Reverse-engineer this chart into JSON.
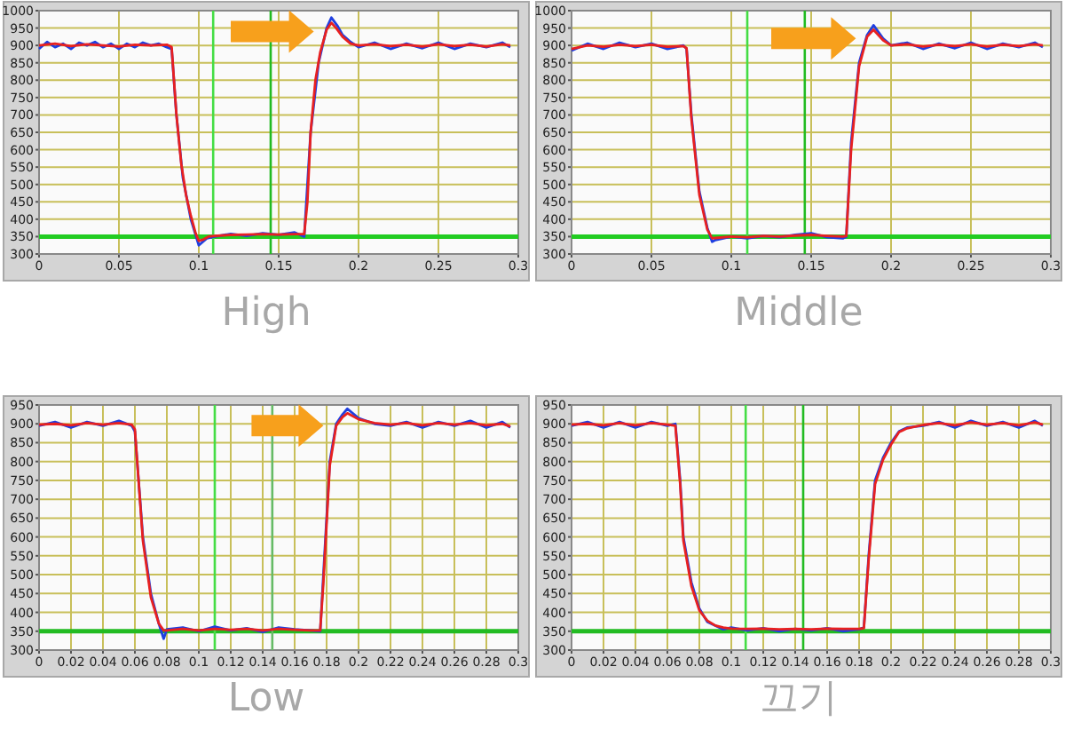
{
  "chart_data": [
    {
      "type": "line",
      "title": "High",
      "xlim": [
        0,
        0.3
      ],
      "xticks": [
        0,
        0.05,
        0.1,
        0.15,
        0.2,
        0.25,
        0.3
      ],
      "ylim": [
        300,
        1000
      ],
      "yticks": [
        300,
        350,
        400,
        450,
        500,
        550,
        600,
        650,
        700,
        750,
        800,
        850,
        900,
        950,
        1000
      ],
      "grid": true,
      "ref_lines": [
        {
          "axis": "y",
          "value": 350,
          "color": "#22cc22"
        },
        {
          "axis": "x",
          "value": 0.109,
          "color": "#44dd44"
        },
        {
          "axis": "x",
          "value": 0.145,
          "color": "#22bb22"
        }
      ],
      "series": [
        {
          "color": "#1f3fe0",
          "x": [
            0,
            0.005,
            0.01,
            0.015,
            0.02,
            0.025,
            0.03,
            0.035,
            0.04,
            0.045,
            0.05,
            0.055,
            0.06,
            0.065,
            0.07,
            0.075,
            0.08,
            0.083,
            0.086,
            0.09,
            0.095,
            0.1,
            0.105,
            0.11,
            0.12,
            0.13,
            0.14,
            0.15,
            0.16,
            0.166,
            0.17,
            0.175,
            0.18,
            0.183,
            0.187,
            0.19,
            0.195,
            0.2,
            0.21,
            0.22,
            0.23,
            0.24,
            0.25,
            0.26,
            0.27,
            0.28,
            0.29,
            0.295
          ],
          "values": [
            890,
            910,
            895,
            905,
            890,
            908,
            900,
            910,
            895,
            905,
            890,
            905,
            895,
            908,
            900,
            905,
            895,
            890,
            700,
            520,
            400,
            325,
            345,
            350,
            358,
            352,
            360,
            355,
            362,
            350,
            650,
            850,
            950,
            980,
            955,
            930,
            910,
            895,
            908,
            890,
            905,
            892,
            908,
            890,
            905,
            895,
            908,
            895
          ]
        },
        {
          "color": "#e82020",
          "x": [
            0,
            0.01,
            0.02,
            0.03,
            0.04,
            0.05,
            0.06,
            0.07,
            0.08,
            0.083,
            0.086,
            0.089,
            0.092,
            0.095,
            0.098,
            0.1,
            0.103,
            0.106,
            0.11,
            0.12,
            0.13,
            0.14,
            0.15,
            0.16,
            0.166,
            0.168,
            0.17,
            0.173,
            0.176,
            0.18,
            0.183,
            0.186,
            0.19,
            0.195,
            0.2,
            0.21,
            0.22,
            0.23,
            0.24,
            0.25,
            0.26,
            0.27,
            0.28,
            0.29,
            0.295
          ],
          "values": [
            900,
            905,
            898,
            903,
            900,
            897,
            902,
            900,
            902,
            895,
            700,
            560,
            470,
            410,
            360,
            338,
            342,
            350,
            352,
            355,
            356,
            357,
            356,
            357,
            357,
            450,
            650,
            800,
            880,
            945,
            965,
            950,
            925,
            905,
            900,
            903,
            898,
            902,
            897,
            903,
            898,
            902,
            897,
            903,
            900
          ]
        }
      ]
    },
    {
      "type": "line",
      "title": "Middle",
      "xlim": [
        0,
        0.3
      ],
      "xticks": [
        0,
        0.05,
        0.1,
        0.15,
        0.2,
        0.25,
        0.3
      ],
      "ylim": [
        300,
        1000
      ],
      "yticks": [
        300,
        350,
        400,
        450,
        500,
        550,
        600,
        650,
        700,
        750,
        800,
        850,
        900,
        950,
        1000
      ],
      "grid": true,
      "ref_lines": [
        {
          "axis": "y",
          "value": 350,
          "color": "#22cc22"
        },
        {
          "axis": "x",
          "value": 0.11,
          "color": "#44dd44"
        },
        {
          "axis": "x",
          "value": 0.146,
          "color": "#22bb22"
        }
      ],
      "series": [
        {
          "color": "#1f3fe0",
          "x": [
            0,
            0.01,
            0.02,
            0.03,
            0.04,
            0.05,
            0.06,
            0.07,
            0.072,
            0.075,
            0.08,
            0.085,
            0.088,
            0.09,
            0.1,
            0.11,
            0.12,
            0.13,
            0.14,
            0.15,
            0.16,
            0.17,
            0.172,
            0.175,
            0.18,
            0.185,
            0.189,
            0.195,
            0.2,
            0.21,
            0.22,
            0.23,
            0.24,
            0.25,
            0.26,
            0.27,
            0.28,
            0.29,
            0.295
          ],
          "values": [
            885,
            905,
            890,
            908,
            895,
            905,
            890,
            900,
            890,
            700,
            480,
            375,
            335,
            340,
            350,
            345,
            352,
            348,
            355,
            360,
            348,
            345,
            350,
            620,
            850,
            930,
            958,
            920,
            900,
            908,
            890,
            905,
            892,
            908,
            890,
            905,
            895,
            908,
            895
          ]
        },
        {
          "color": "#e82020",
          "x": [
            0,
            0.01,
            0.02,
            0.03,
            0.04,
            0.05,
            0.06,
            0.07,
            0.072,
            0.075,
            0.08,
            0.085,
            0.088,
            0.09,
            0.1,
            0.11,
            0.12,
            0.13,
            0.14,
            0.15,
            0.16,
            0.17,
            0.172,
            0.175,
            0.18,
            0.185,
            0.189,
            0.195,
            0.2,
            0.21,
            0.22,
            0.23,
            0.24,
            0.25,
            0.26,
            0.27,
            0.28,
            0.29,
            0.295
          ],
          "values": [
            890,
            900,
            896,
            902,
            898,
            902,
            896,
            898,
            892,
            690,
            470,
            370,
            345,
            346,
            350,
            348,
            352,
            350,
            353,
            355,
            352,
            350,
            352,
            600,
            840,
            925,
            945,
            915,
            900,
            903,
            897,
            902,
            898,
            903,
            897,
            902,
            898,
            903,
            900
          ]
        }
      ]
    },
    {
      "type": "line",
      "title": "Low",
      "xlim": [
        0,
        0.3
      ],
      "xticks": [
        0,
        0.02,
        0.04,
        0.06,
        0.08,
        0.1,
        0.12,
        0.14,
        0.16,
        0.18,
        0.2,
        0.22,
        0.24,
        0.26,
        0.28,
        0.3
      ],
      "ylim": [
        300,
        950
      ],
      "yticks": [
        300,
        350,
        400,
        450,
        500,
        550,
        600,
        650,
        700,
        750,
        800,
        850,
        900,
        950
      ],
      "grid": true,
      "ref_lines": [
        {
          "axis": "y",
          "value": 350,
          "color": "#22bb22"
        },
        {
          "axis": "x",
          "value": 0.11,
          "color": "#44dd44"
        },
        {
          "axis": "x",
          "value": 0.146,
          "color": "#66bb66"
        }
      ],
      "series": [
        {
          "color": "#1f3fe0",
          "x": [
            0,
            0.01,
            0.02,
            0.03,
            0.04,
            0.05,
            0.058,
            0.06,
            0.065,
            0.07,
            0.075,
            0.078,
            0.08,
            0.09,
            0.1,
            0.11,
            0.12,
            0.13,
            0.14,
            0.15,
            0.16,
            0.17,
            0.176,
            0.178,
            0.182,
            0.186,
            0.19,
            0.193,
            0.2,
            0.21,
            0.22,
            0.23,
            0.24,
            0.25,
            0.26,
            0.27,
            0.28,
            0.29,
            0.295
          ],
          "values": [
            895,
            905,
            890,
            905,
            895,
            908,
            895,
            880,
            600,
            450,
            370,
            330,
            355,
            360,
            350,
            362,
            352,
            358,
            348,
            360,
            355,
            352,
            350,
            500,
            800,
            900,
            925,
            940,
            915,
            900,
            895,
            905,
            890,
            905,
            895,
            908,
            890,
            905,
            890
          ]
        },
        {
          "color": "#e82020",
          "x": [
            0,
            0.01,
            0.02,
            0.03,
            0.04,
            0.05,
            0.058,
            0.06,
            0.065,
            0.07,
            0.075,
            0.078,
            0.08,
            0.09,
            0.1,
            0.11,
            0.12,
            0.13,
            0.14,
            0.15,
            0.16,
            0.17,
            0.176,
            0.178,
            0.182,
            0.186,
            0.19,
            0.193,
            0.2,
            0.21,
            0.22,
            0.23,
            0.24,
            0.25,
            0.26,
            0.27,
            0.28,
            0.29,
            0.295
          ],
          "values": [
            898,
            900,
            896,
            902,
            898,
            902,
            898,
            885,
            590,
            440,
            370,
            352,
            352,
            356,
            352,
            356,
            354,
            356,
            352,
            356,
            354,
            352,
            352,
            480,
            790,
            895,
            918,
            928,
            912,
            902,
            898,
            902,
            896,
            902,
            898,
            902,
            896,
            900,
            893
          ]
        }
      ]
    },
    {
      "type": "line",
      "title": "끄기",
      "xlim": [
        0,
        0.3
      ],
      "xticks": [
        0,
        0.02,
        0.04,
        0.06,
        0.08,
        0.1,
        0.12,
        0.14,
        0.16,
        0.18,
        0.2,
        0.22,
        0.24,
        0.26,
        0.28,
        0.3
      ],
      "ylim": [
        300,
        950
      ],
      "yticks": [
        300,
        350,
        400,
        450,
        500,
        550,
        600,
        650,
        700,
        750,
        800,
        850,
        900,
        950
      ],
      "grid": true,
      "ref_lines": [
        {
          "axis": "y",
          "value": 350,
          "color": "#22bb22"
        },
        {
          "axis": "x",
          "value": 0.109,
          "color": "#44dd44"
        },
        {
          "axis": "x",
          "value": 0.145,
          "color": "#22bb22"
        }
      ],
      "series": [
        {
          "color": "#1f3fe0",
          "x": [
            0,
            0.01,
            0.02,
            0.03,
            0.04,
            0.05,
            0.06,
            0.065,
            0.068,
            0.07,
            0.075,
            0.08,
            0.085,
            0.09,
            0.095,
            0.1,
            0.11,
            0.12,
            0.13,
            0.14,
            0.15,
            0.16,
            0.17,
            0.18,
            0.183,
            0.186,
            0.19,
            0.195,
            0.2,
            0.205,
            0.21,
            0.22,
            0.23,
            0.24,
            0.25,
            0.26,
            0.27,
            0.28,
            0.29,
            0.295
          ],
          "values": [
            895,
            905,
            890,
            905,
            890,
            905,
            895,
            900,
            750,
            600,
            480,
            410,
            375,
            365,
            355,
            360,
            352,
            358,
            350,
            356,
            352,
            358,
            350,
            355,
            360,
            550,
            750,
            810,
            850,
            880,
            890,
            895,
            905,
            890,
            908,
            895,
            905,
            890,
            908,
            895
          ]
        },
        {
          "color": "#e82020",
          "x": [
            0,
            0.01,
            0.02,
            0.03,
            0.04,
            0.05,
            0.06,
            0.065,
            0.068,
            0.07,
            0.075,
            0.08,
            0.085,
            0.09,
            0.095,
            0.1,
            0.11,
            0.12,
            0.13,
            0.14,
            0.15,
            0.16,
            0.17,
            0.18,
            0.183,
            0.186,
            0.19,
            0.195,
            0.2,
            0.205,
            0.21,
            0.22,
            0.23,
            0.24,
            0.25,
            0.26,
            0.27,
            0.28,
            0.29,
            0.295
          ],
          "values": [
            898,
            900,
            896,
            902,
            896,
            902,
            898,
            895,
            740,
            590,
            470,
            405,
            378,
            365,
            360,
            357,
            356,
            357,
            355,
            356,
            355,
            357,
            356,
            356,
            358,
            540,
            740,
            805,
            845,
            878,
            888,
            897,
            902,
            896,
            904,
            898,
            902,
            896,
            904,
            898
          ]
        }
      ]
    }
  ]
}
